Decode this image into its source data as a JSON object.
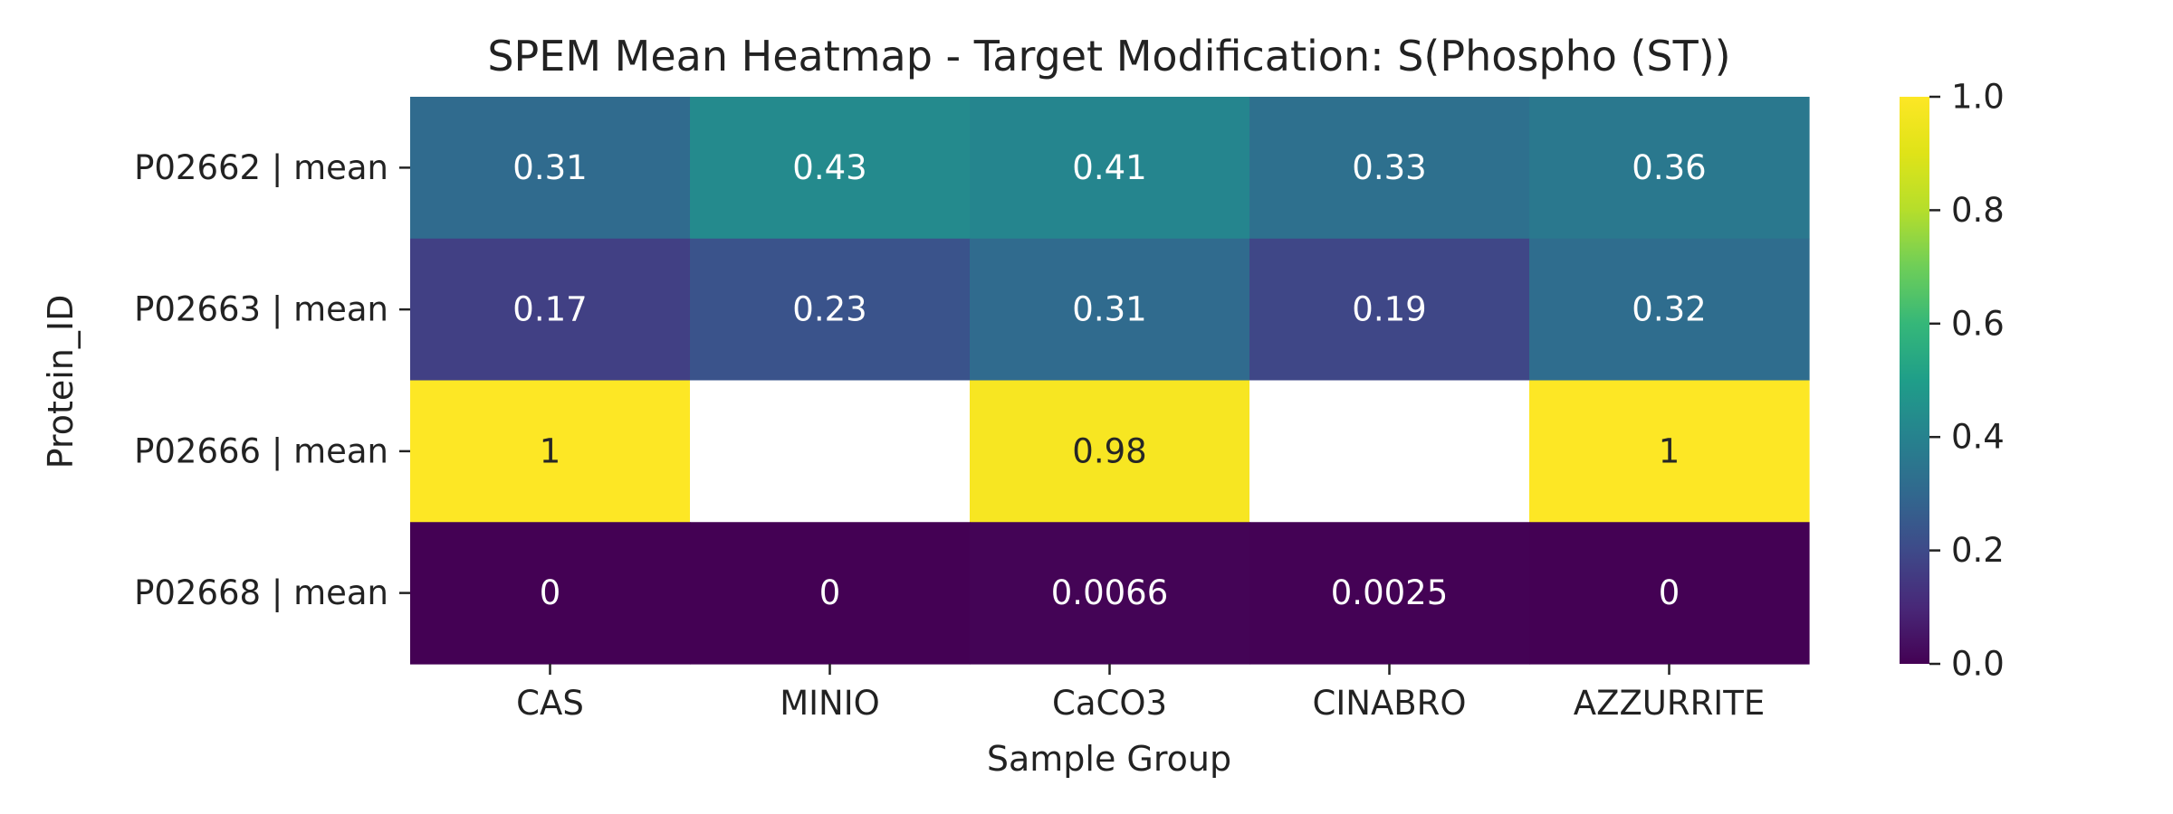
{
  "chart_data": {
    "type": "heatmap",
    "title": "SPEM Mean Heatmap - Target Modification: S(Phospho (ST))",
    "xlabel": "Sample Group",
    "ylabel": "Protein_ID",
    "x_categories": [
      "CAS",
      "MINIO",
      "CaCO3",
      "CINABRO",
      "AZZURRITE"
    ],
    "y_categories": [
      "P02662 | mean",
      "P02663 | mean",
      "P02666 | mean",
      "P02668 | mean"
    ],
    "values": [
      [
        0.31,
        0.43,
        0.41,
        0.33,
        0.36
      ],
      [
        0.17,
        0.23,
        0.31,
        0.19,
        0.32
      ],
      [
        1,
        null,
        0.98,
        null,
        1
      ],
      [
        0,
        0,
        0.0066,
        0.0025,
        0
      ]
    ],
    "cell_labels": [
      [
        "0.31",
        "0.43",
        "0.41",
        "0.33",
        "0.36"
      ],
      [
        "0.17",
        "0.23",
        "0.31",
        "0.19",
        "0.32"
      ],
      [
        "1",
        "",
        "0.98",
        "",
        "1"
      ],
      [
        "0",
        "0",
        "0.0066",
        "0.0025",
        "0"
      ]
    ],
    "colormap": "viridis",
    "colorbar": {
      "range": [
        0,
        1
      ],
      "ticks": [
        0,
        0.2,
        0.4,
        0.6,
        0.8,
        1.0
      ],
      "tick_labels": [
        "0.0",
        "0.2",
        "0.4",
        "0.6",
        "0.8",
        "1.0"
      ]
    },
    "missing_color": "#ffffff",
    "grid": false,
    "legend": "colorbar-right"
  }
}
